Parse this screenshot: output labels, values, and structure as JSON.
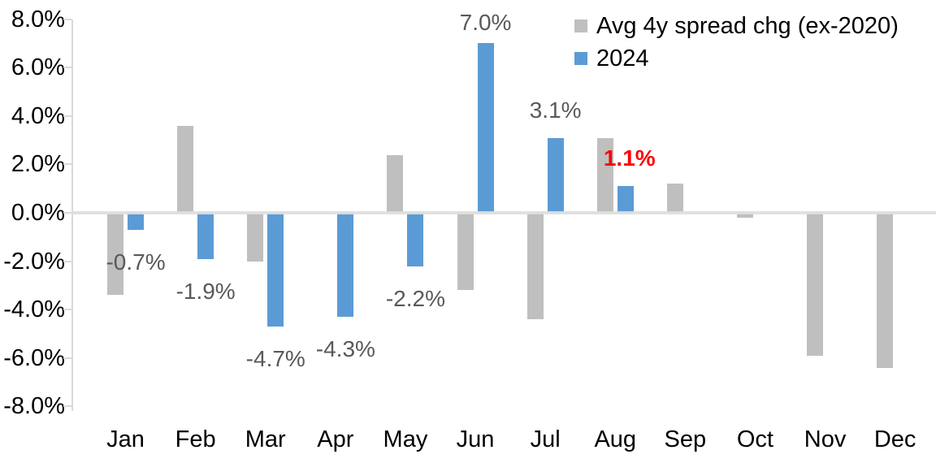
{
  "chart_data": {
    "type": "bar",
    "title": "",
    "xlabel": "",
    "ylabel": "",
    "categories": [
      "Jan",
      "Feb",
      "Mar",
      "Apr",
      "May",
      "Jun",
      "Jul",
      "Aug",
      "Sep",
      "Oct",
      "Nov",
      "Dec"
    ],
    "series": [
      {
        "name": "Avg 4y spread chg (ex-2020)",
        "color": "#BFBFBF",
        "values": [
          -3.4,
          3.6,
          -2.0,
          0.0,
          2.4,
          -3.2,
          -4.4,
          3.1,
          1.2,
          -0.2,
          -5.9,
          -6.4
        ]
      },
      {
        "name": "2024",
        "color": "#5B9BD5",
        "values": [
          -0.7,
          -1.9,
          -4.7,
          -4.3,
          -2.2,
          7.0,
          3.1,
          1.1,
          null,
          null,
          null,
          null
        ]
      }
    ],
    "data_labels": [
      {
        "month_index": 0,
        "text": "-0.7%",
        "color": "#595959",
        "bold": false
      },
      {
        "month_index": 1,
        "text": "-1.9%",
        "color": "#595959",
        "bold": false
      },
      {
        "month_index": 2,
        "text": "-4.7%",
        "color": "#595959",
        "bold": false
      },
      {
        "month_index": 3,
        "text": "-4.3%",
        "color": "#595959",
        "bold": false
      },
      {
        "month_index": 4,
        "text": "-2.2%",
        "color": "#595959",
        "bold": false
      },
      {
        "month_index": 5,
        "text": "7.0%",
        "color": "#595959",
        "bold": false
      },
      {
        "month_index": 6,
        "text": "3.1%",
        "color": "#595959",
        "bold": false
      },
      {
        "month_index": 7,
        "text": "1.1%",
        "color": "#FF0000",
        "bold": true
      }
    ],
    "ylim": [
      -8,
      8
    ],
    "ytick_step": 2,
    "ytick_labels": [
      "8.0%",
      "6.0%",
      "4.0%",
      "2.0%",
      "0.0%",
      "-2.0%",
      "-4.0%",
      "-6.0%",
      "-8.0%"
    ],
    "grid": false,
    "legend_position": "top-right",
    "axis_color": "#D9D9D9",
    "zero_line_color": "#DEDEDE",
    "tick_label_color": "#000000",
    "highlight_color": "#FF0000"
  }
}
